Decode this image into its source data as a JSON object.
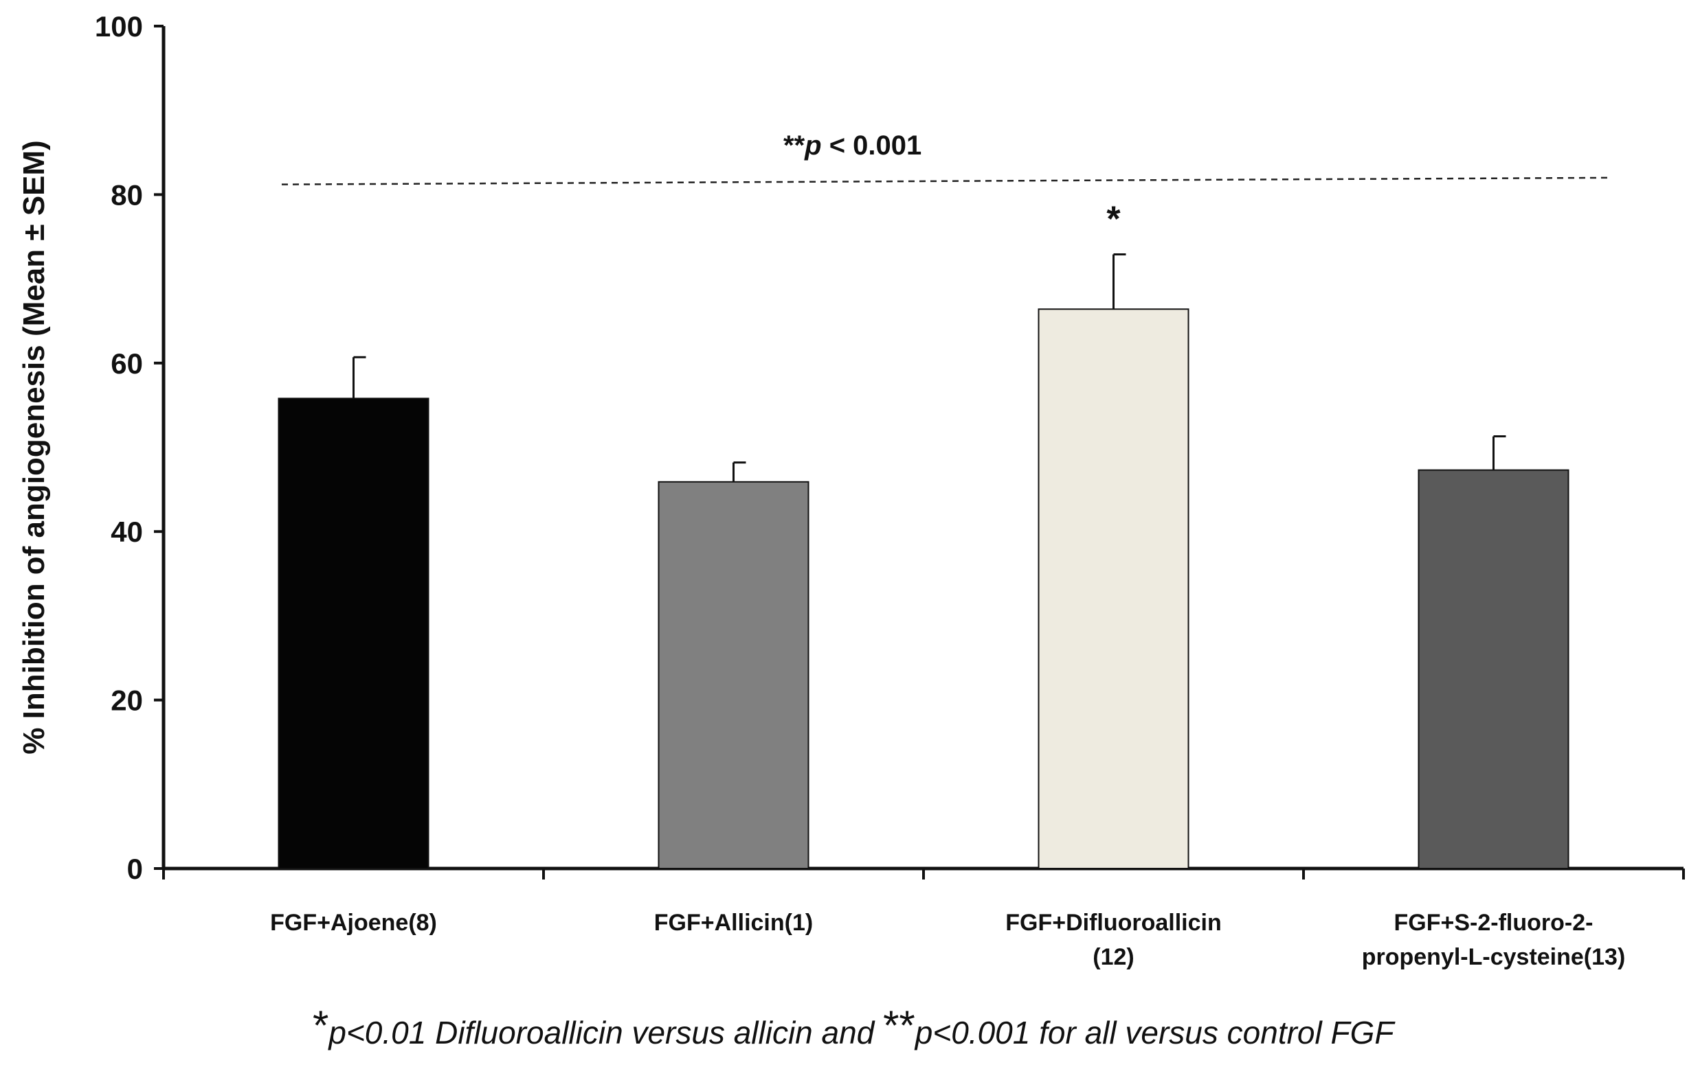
{
  "chart_data": {
    "type": "bar",
    "title": "",
    "xlabel": "",
    "ylabel": "% Inhibition of angiogenesis (Mean ± SEM)",
    "ylim": [
      0,
      100
    ],
    "yticks": [
      0,
      20,
      40,
      60,
      80,
      100
    ],
    "grid": false,
    "legend": "none",
    "categories": [
      {
        "lines": [
          "FGF+Ajoene(8)"
        ]
      },
      {
        "lines": [
          "FGF+Allicin(1)"
        ]
      },
      {
        "lines": [
          "FGF+Difluoroallicin",
          "(12)"
        ]
      },
      {
        "lines": [
          "FGF+S-2-fluoro-2-",
          "propenyl-L-cysteine(13)"
        ]
      }
    ],
    "values": [
      55.8,
      45.9,
      66.4,
      47.3
    ],
    "errors": [
      4.9,
      2.3,
      6.5,
      4.0
    ],
    "colors": [
      "#050505",
      "#808080",
      "#eeebe0",
      "#5a5a5a"
    ],
    "bar_annotations": [
      "",
      "",
      "*",
      ""
    ],
    "significance_line": {
      "label_prefix": "**",
      "label_italic": "p",
      "label_suffix": " < 0.001",
      "y_start": 81.2,
      "y_end": 82.0
    },
    "footnote": {
      "mark1": "*",
      "text1": "p<0.01 Difluoroallicin versus allicin and ",
      "mark2": "**",
      "text2": "p<0.001 for all versus control FGF"
    }
  }
}
